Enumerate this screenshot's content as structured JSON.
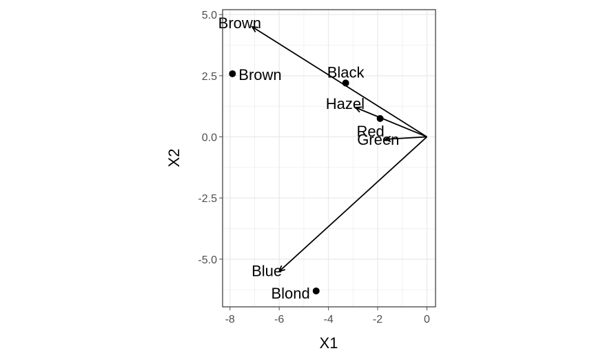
{
  "chart_data": {
    "type": "scatter",
    "title": "",
    "xlabel": "X1",
    "ylabel": "X2",
    "xlim": [
      -8.3,
      0.35
    ],
    "ylim": [
      -6.95,
      5.2
    ],
    "x_ticks": [
      -8,
      -6,
      -4,
      -2,
      0
    ],
    "x_tick_labels": [
      "-8",
      "-6",
      "-4",
      "-2",
      "0"
    ],
    "y_ticks": [
      5.0,
      2.5,
      0.0,
      -2.5,
      -5.0
    ],
    "y_tick_labels": [
      "5.0",
      "2.5",
      "0.0",
      "-2.5",
      "-5.0"
    ],
    "grid": true,
    "theme": "bw",
    "points": [
      {
        "label": "Brown",
        "x": -7.9,
        "y": 2.58
      },
      {
        "label": "Black",
        "x": -3.3,
        "y": 2.2
      },
      {
        "label": "Red",
        "x": -1.9,
        "y": 0.75
      },
      {
        "label": "Blond",
        "x": -4.5,
        "y": -6.3
      }
    ],
    "vectors": [
      {
        "label": "Brown",
        "x": -7.1,
        "y": 4.5
      },
      {
        "label": "Hazel",
        "x": -2.9,
        "y": 1.2
      },
      {
        "label": "Green",
        "x": -1.7,
        "y": -0.1
      },
      {
        "label": "Blue",
        "x": -6.0,
        "y": -5.5
      }
    ],
    "colors": {
      "marks": "#000000",
      "grid": "#ebebeb",
      "panel_border": "#333333",
      "ticks": "#4d4d4d"
    }
  }
}
